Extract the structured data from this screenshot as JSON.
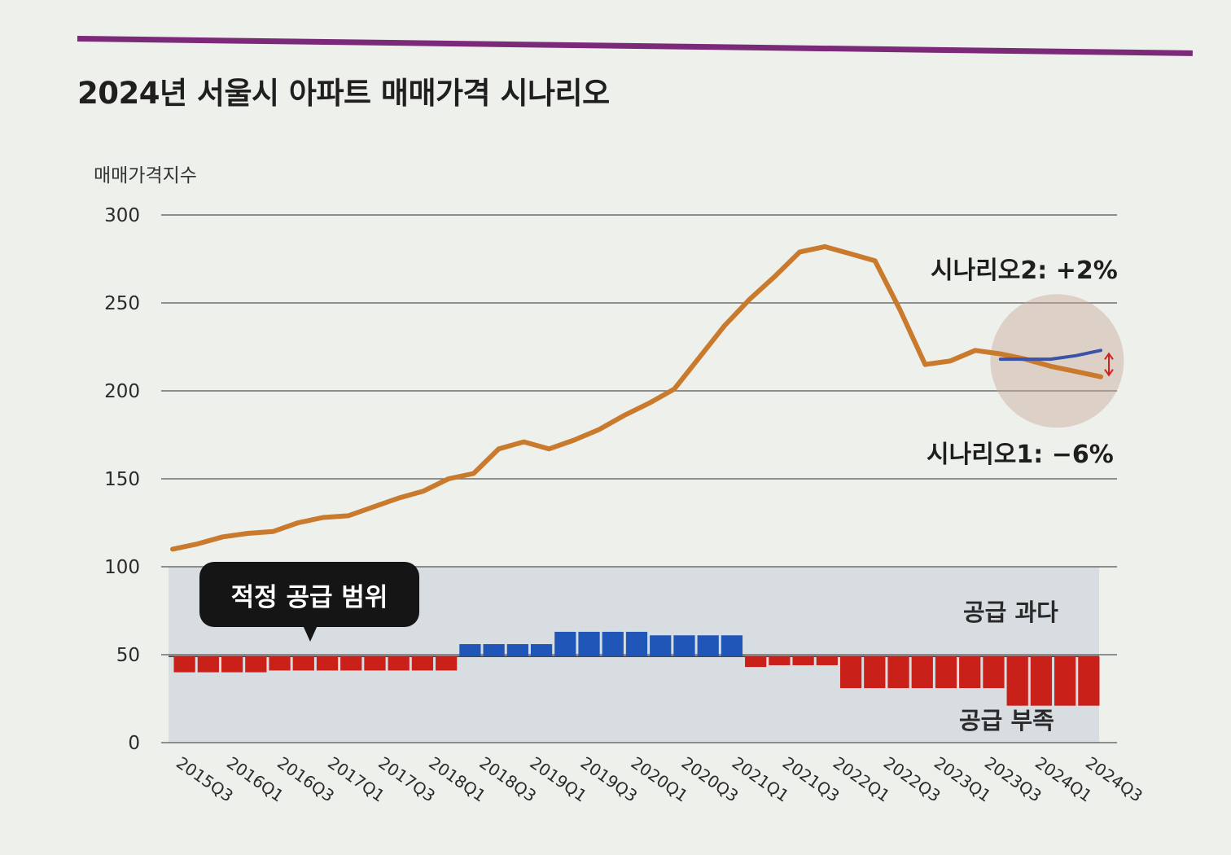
{
  "title": "2024년 서울시 아파트 매매가격 시나리오",
  "colors": {
    "accent_rule": "#7a2a78",
    "price_line": "#c97a2c",
    "scenario2_line": "#3a52a8",
    "oversupply": "#1f56b8",
    "undersupply": "#c9201a",
    "band": "#cfd7dc",
    "callout_bg": "#151515"
  },
  "chart_data": {
    "type": "line",
    "ylabel": "매매가격지수",
    "ylim": [
      0,
      300
    ],
    "yticks": [
      "300",
      "250",
      "200",
      "150",
      "100",
      "50",
      "0"
    ],
    "xtick_labels": [
      "2015Q3",
      "2016Q1",
      "2016Q3",
      "2017Q1",
      "2017Q3",
      "2018Q1",
      "2018Q3",
      "2019Q1",
      "2019Q3",
      "2020Q1",
      "2020Q3",
      "2021Q1",
      "2021Q3",
      "2022Q1",
      "2022Q3",
      "2023Q1",
      "2023Q3",
      "2024Q1",
      "2024Q3"
    ],
    "grid": true,
    "price_index": [
      110,
      113,
      117,
      119,
      120,
      125,
      128,
      129,
      134,
      139,
      143,
      150,
      153,
      167,
      171,
      167,
      172,
      178,
      186,
      193,
      201,
      219,
      237,
      252,
      265,
      279,
      282,
      278,
      274,
      246,
      215,
      217,
      223,
      221,
      218,
      214,
      211,
      208
    ],
    "scenario2_path": [
      218,
      218,
      218,
      220,
      223
    ],
    "supply_index": [
      40,
      40,
      40,
      40,
      41,
      41,
      41,
      41,
      41,
      41,
      41,
      41,
      56,
      56,
      56,
      56,
      63,
      63,
      63,
      63,
      61,
      61,
      61,
      61,
      43,
      44,
      44,
      44,
      31,
      31,
      31,
      31,
      31,
      31,
      31,
      21,
      21,
      21,
      21
    ],
    "supply_baseline": 49,
    "band_range": [
      0,
      100
    ],
    "annotations": {
      "scenario2": "시나리오2: +2%",
      "scenario1": "시나리오1: −6%",
      "oversupply": "공급 과다",
      "undersupply": "공급 부족",
      "optimal_supply": "적정 공급 범위"
    }
  }
}
